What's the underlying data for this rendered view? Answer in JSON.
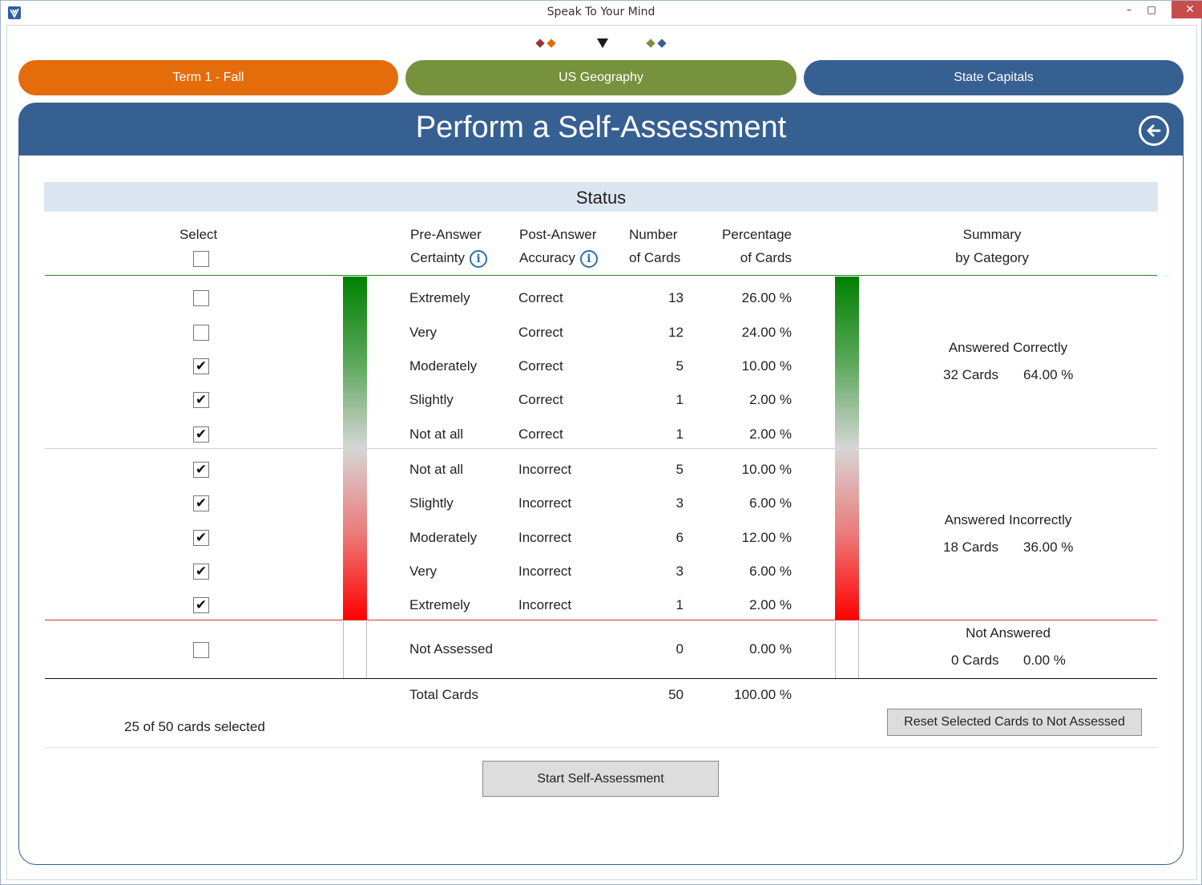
{
  "window": {
    "title": "Speak To Your Mind",
    "minimize_glyph": "–",
    "maximize_glyph": "□",
    "close_glyph": "✕"
  },
  "nav": {
    "term": "Term 1 - Fall",
    "course": "US Geography",
    "deck": "State Capitals",
    "colors": {
      "term": "#e46c0a",
      "course": "#76923c",
      "deck": "#366092"
    }
  },
  "header": {
    "title": "Perform a Self-Assessment"
  },
  "status": {
    "title": "Status",
    "headers": {
      "select": "Select",
      "pre_answer_1": "Pre-Answer",
      "pre_answer_2": "Certainty",
      "post_answer_1": "Post-Answer",
      "post_answer_2": "Accuracy",
      "number_1": "Number",
      "number_2": "of Cards",
      "percentage_1": "Percentage",
      "percentage_2": "of Cards",
      "summary_1": "Summary",
      "summary_2": "by Category"
    },
    "rows": [
      {
        "certainty": "Extremely",
        "accuracy": "Correct",
        "count": "13",
        "percent": "26.00 %",
        "checked": false
      },
      {
        "certainty": "Very",
        "accuracy": "Correct",
        "count": "12",
        "percent": "24.00 %",
        "checked": false
      },
      {
        "certainty": "Moderately",
        "accuracy": "Correct",
        "count": "5",
        "percent": "10.00 %",
        "checked": true
      },
      {
        "certainty": "Slightly",
        "accuracy": "Correct",
        "count": "1",
        "percent": "2.00 %",
        "checked": true
      },
      {
        "certainty": "Not at all",
        "accuracy": "Correct",
        "count": "1",
        "percent": "2.00 %",
        "checked": true
      },
      {
        "certainty": "Not at all",
        "accuracy": "Incorrect",
        "count": "5",
        "percent": "10.00 %",
        "checked": true
      },
      {
        "certainty": "Slightly",
        "accuracy": "Incorrect",
        "count": "3",
        "percent": "6.00 %",
        "checked": true
      },
      {
        "certainty": "Moderately",
        "accuracy": "Incorrect",
        "count": "6",
        "percent": "12.00 %",
        "checked": true
      },
      {
        "certainty": "Very",
        "accuracy": "Incorrect",
        "count": "3",
        "percent": "6.00 %",
        "checked": true
      },
      {
        "certainty": "Extremely",
        "accuracy": "Incorrect",
        "count": "1",
        "percent": "2.00 %",
        "checked": true
      }
    ],
    "not_assessed": {
      "label": "Not Assessed",
      "count": "0",
      "percent": "0.00 %",
      "checked": false
    },
    "total": {
      "label": "Total Cards",
      "count": "50",
      "percent": "100.00 %"
    },
    "summary": {
      "correct": {
        "title": "Answered Correctly",
        "cards": "32 Cards",
        "percent": "64.00 %"
      },
      "incorrect": {
        "title": "Answered Incorrectly",
        "cards": "18 Cards",
        "percent": "36.00 %"
      },
      "not_answered": {
        "title": "Not Answered",
        "cards": "0 Cards",
        "percent": "0.00 %"
      }
    },
    "selected_text": "25 of 50 cards selected",
    "check_glyph": "✔"
  },
  "buttons": {
    "reset": "Reset Selected Cards to Not Assessed",
    "start": "Start Self-Assessment"
  }
}
